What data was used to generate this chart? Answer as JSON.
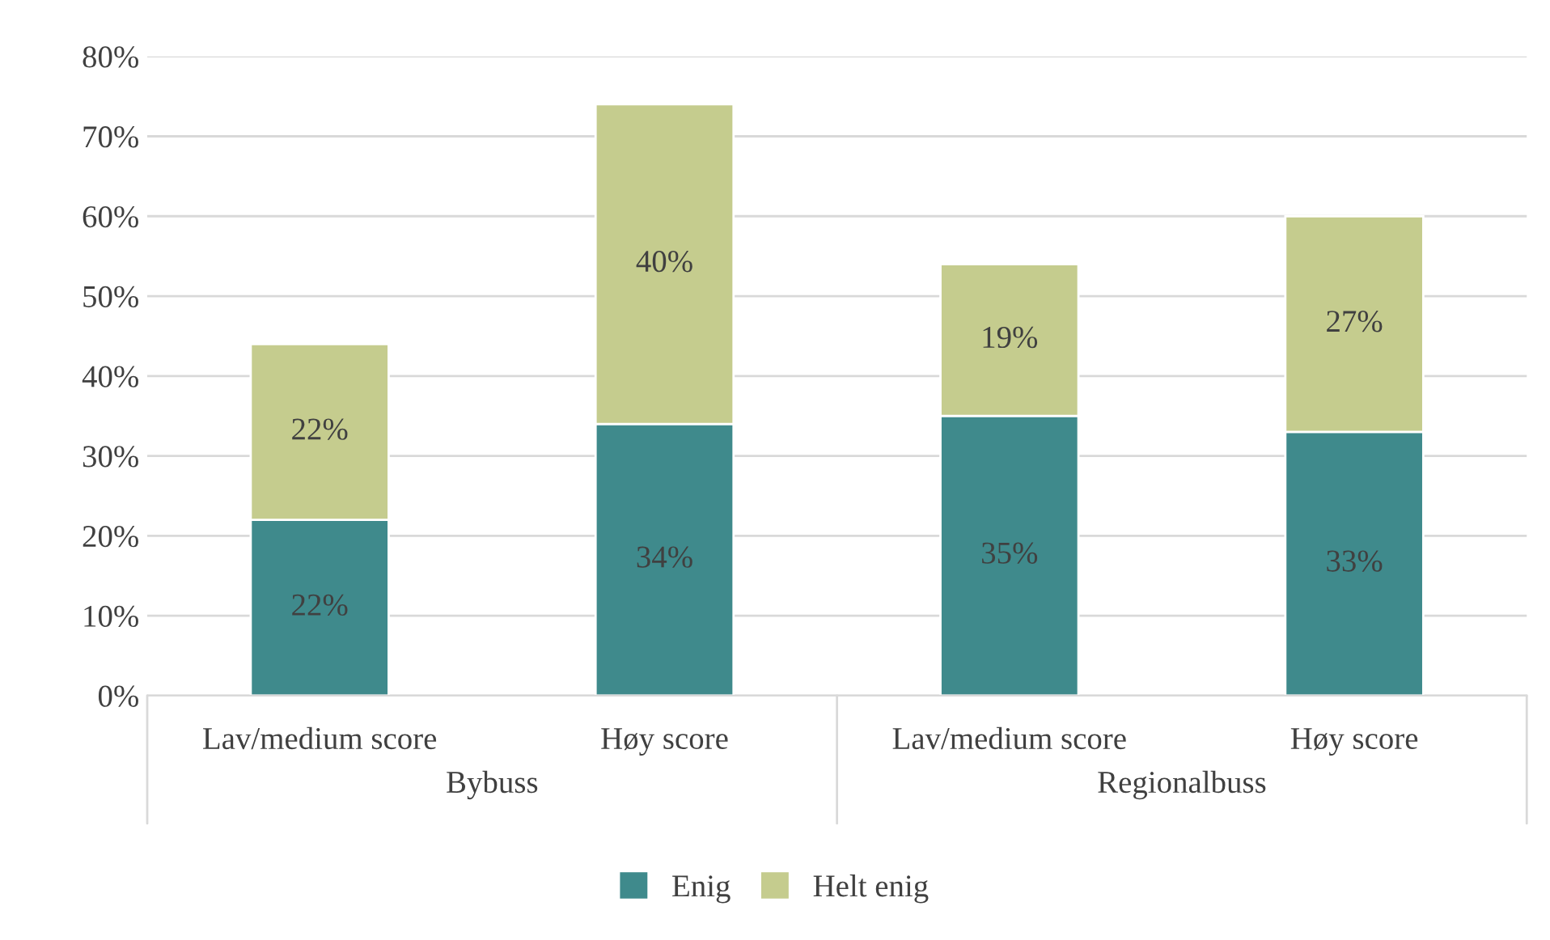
{
  "chart_data": {
    "type": "bar",
    "stacked": true,
    "categories": [
      "Lav/medium score",
      "Høy score",
      "Lav/medium score",
      "Høy score"
    ],
    "series": [
      {
        "name": "Enig",
        "color": "#3f8a8c",
        "values": [
          22,
          34,
          35,
          33
        ],
        "value_labels": [
          "22%",
          "34%",
          "35%",
          "33%"
        ]
      },
      {
        "name": "Helt enig",
        "color": "#c5cc8e",
        "values": [
          22,
          40,
          19,
          27
        ],
        "value_labels": [
          "22%",
          "40%",
          "19%",
          "27%"
        ]
      }
    ],
    "annotations": [
      "Bybuss",
      "Regionalbuss"
    ],
    "grid": "y",
    "legend": "bottom",
    "ylim": [
      0,
      80
    ],
    "yticks": [
      {
        "value": 0,
        "label": "0%"
      },
      {
        "value": 10,
        "label": "10%"
      },
      {
        "value": 20,
        "label": "20%"
      },
      {
        "value": 30,
        "label": "30%"
      },
      {
        "value": 40,
        "label": "40%"
      },
      {
        "value": 50,
        "label": "50%"
      },
      {
        "value": 60,
        "label": "60%"
      },
      {
        "value": 70,
        "label": "70%"
      },
      {
        "value": 80,
        "label": "80%"
      }
    ]
  }
}
